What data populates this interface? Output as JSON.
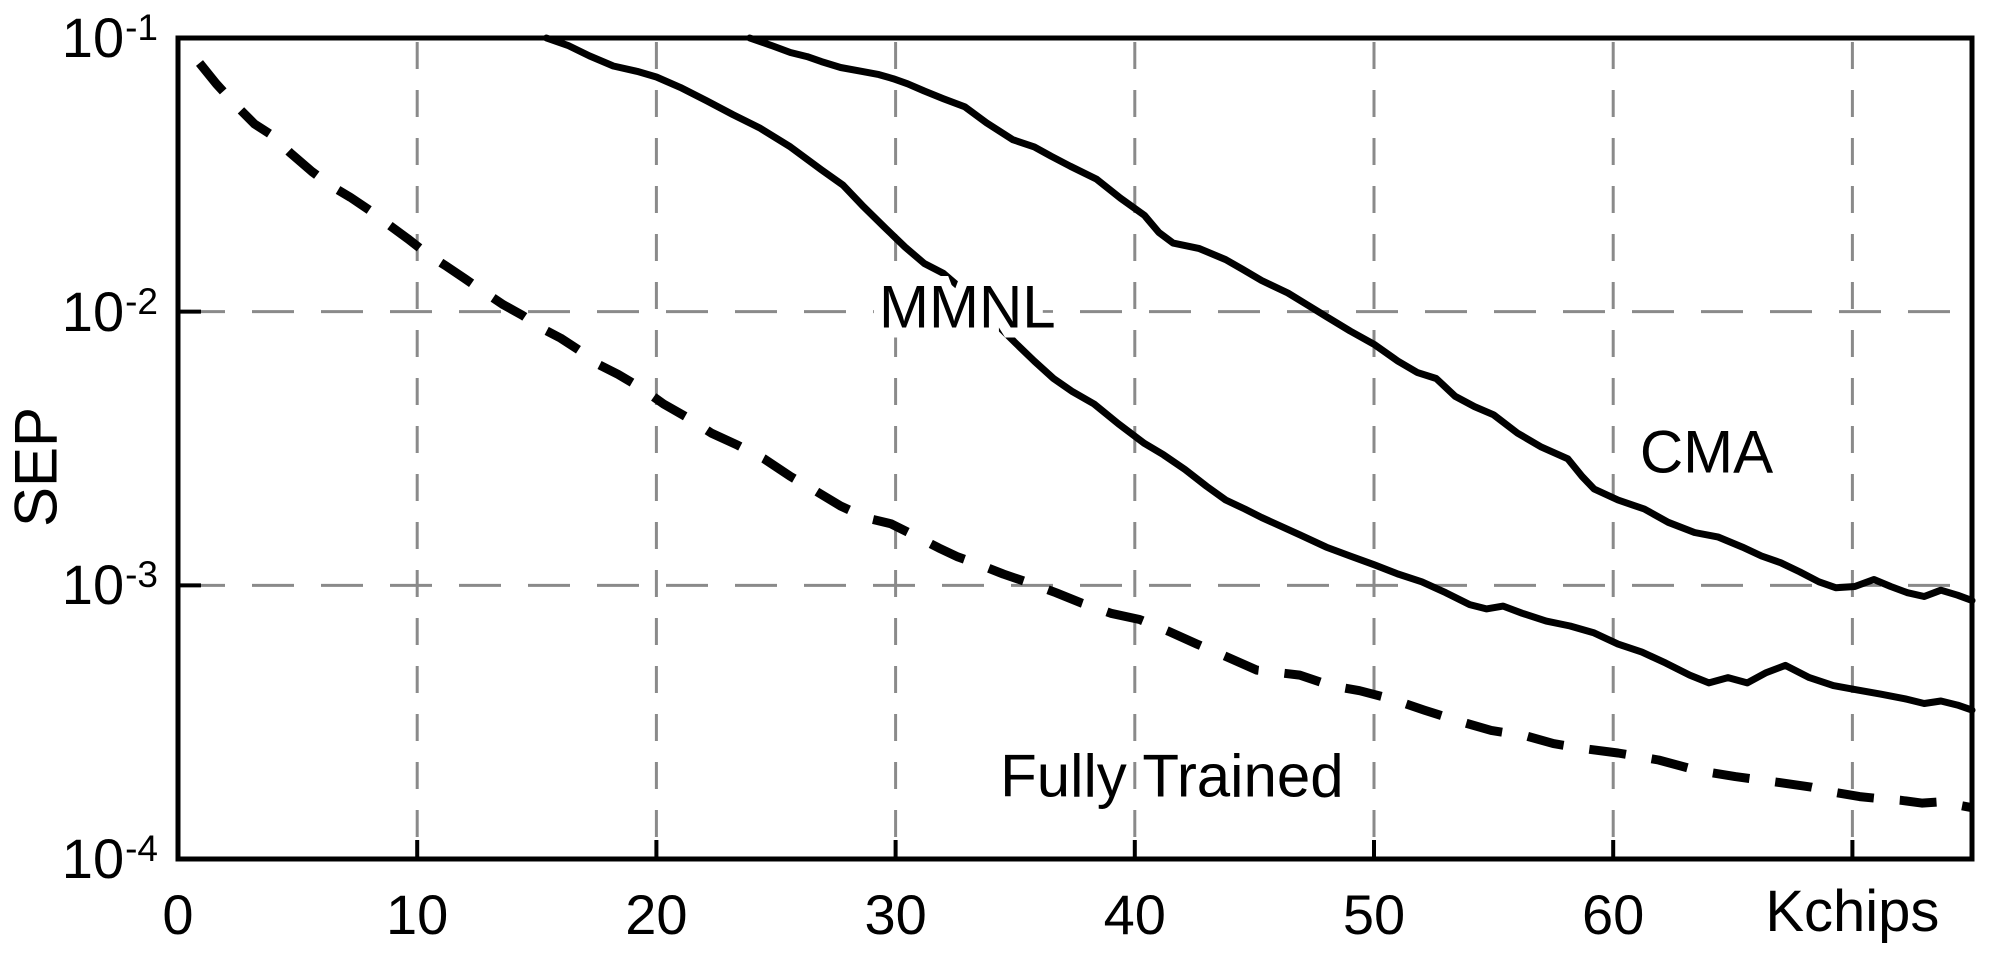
{
  "figure": {
    "background": "#ffffff",
    "axis_color": "#000000",
    "grid_color": "#8a8a8a",
    "curve_color": "#000000"
  },
  "chart_data": {
    "type": "line",
    "title": "",
    "xlabel": "Kchips",
    "ylabel": "SEP",
    "x_axis": {
      "min": 0,
      "max": 75,
      "grid_values": [
        10,
        20,
        30,
        40,
        50,
        60,
        70
      ],
      "tick_labels": [
        {
          "value": 0,
          "text": "0"
        },
        {
          "value": 10,
          "text": "10"
        },
        {
          "value": 20,
          "text": "20"
        },
        {
          "value": 30,
          "text": "30"
        },
        {
          "value": 40,
          "text": "40"
        },
        {
          "value": 50,
          "text": "50"
        },
        {
          "value": 60,
          "text": "60"
        }
      ],
      "unit_label": "Kchips",
      "unit_label_at": 70
    },
    "y_axis": {
      "scale": "log",
      "min": 0.0001,
      "max": 0.1,
      "grid_values": [
        0.01,
        0.001
      ],
      "axis_label": "SEP",
      "tick_labels": [
        {
          "base": "10",
          "exp": "-1",
          "value": 0.1
        },
        {
          "base": "10",
          "exp": "-2",
          "value": 0.01
        },
        {
          "base": "10",
          "exp": "-3",
          "value": 0.001
        },
        {
          "base": "10",
          "exp": "-4",
          "value": 0.0001
        }
      ]
    },
    "legend": "inline-annotations",
    "grid": true,
    "series": [
      {
        "name": "MMNL",
        "line_style": "solid",
        "annotation": {
          "text": "MMNL",
          "k": 33.0,
          "v": 0.0104,
          "halo": true
        },
        "points": [
          [
            15.4,
            0.1
          ],
          [
            16.3,
            0.094
          ],
          [
            17.2,
            0.086
          ],
          [
            18.2,
            0.079
          ],
          [
            19.2,
            0.0755
          ],
          [
            20,
            0.072
          ],
          [
            21,
            0.066
          ],
          [
            22.1,
            0.059
          ],
          [
            23.2,
            0.0525
          ],
          [
            24.3,
            0.047
          ],
          [
            25.6,
            0.04
          ],
          [
            26.9,
            0.033
          ],
          [
            27.8,
            0.029
          ],
          [
            28.6,
            0.0245
          ],
          [
            29.5,
            0.0205
          ],
          [
            30.4,
            0.0172
          ],
          [
            31.2,
            0.015
          ],
          [
            32,
            0.0138
          ],
          [
            33,
            0.0116
          ],
          [
            34,
            0.0094
          ],
          [
            35,
            0.0077
          ],
          [
            35.8,
            0.0066
          ],
          [
            36.6,
            0.0057
          ],
          [
            37.4,
            0.0051
          ],
          [
            38.3,
            0.0046
          ],
          [
            39.3,
            0.0039
          ],
          [
            40.4,
            0.0033
          ],
          [
            41.2,
            0.003
          ],
          [
            42.1,
            0.00265
          ],
          [
            43,
            0.0023
          ],
          [
            43.8,
            0.00205
          ],
          [
            44.6,
            0.0019
          ],
          [
            45.3,
            0.00177
          ],
          [
            46.9,
            0.00153
          ],
          [
            48,
            0.00138
          ],
          [
            49,
            0.00128
          ],
          [
            50,
            0.00119
          ],
          [
            51,
            0.0011
          ],
          [
            52,
            0.00103
          ],
          [
            53,
            0.00094
          ],
          [
            54,
            0.00085
          ],
          [
            54.7,
            0.00082
          ],
          [
            55.4,
            0.00084
          ],
          [
            56.2,
            0.00079
          ],
          [
            57.2,
            0.00074
          ],
          [
            58.2,
            0.00071
          ],
          [
            59.2,
            0.00067
          ],
          [
            60.2,
            0.00061
          ],
          [
            61.2,
            0.00057
          ],
          [
            62.2,
            0.00052
          ],
          [
            63.2,
            0.00047
          ],
          [
            64,
            0.00044
          ],
          [
            64.8,
            0.00046
          ],
          [
            65.6,
            0.00044
          ],
          [
            66.4,
            0.00048
          ],
          [
            67.2,
            0.00051
          ],
          [
            68.2,
            0.00046
          ],
          [
            69.2,
            0.00043
          ],
          [
            70.2,
            0.000415
          ],
          [
            71.2,
            0.0004
          ],
          [
            72.2,
            0.000385
          ],
          [
            73,
            0.00037
          ],
          [
            73.7,
            0.000378
          ],
          [
            74.4,
            0.000365
          ],
          [
            75,
            0.00035
          ]
        ]
      },
      {
        "name": "CMA",
        "line_style": "solid",
        "annotation": {
          "text": "CMA",
          "k": 63.9,
          "v": 0.00307,
          "halo": true
        },
        "points": [
          [
            23.9,
            0.1
          ],
          [
            24.8,
            0.094
          ],
          [
            25.6,
            0.0885
          ],
          [
            26.3,
            0.0855
          ],
          [
            26.9,
            0.082
          ],
          [
            27.7,
            0.078
          ],
          [
            28.6,
            0.0755
          ],
          [
            29.3,
            0.0735
          ],
          [
            29.9,
            0.071
          ],
          [
            30.5,
            0.068
          ],
          [
            31.2,
            0.064
          ],
          [
            32,
            0.06
          ],
          [
            32.9,
            0.056
          ],
          [
            33.8,
            0.049
          ],
          [
            34.9,
            0.0425
          ],
          [
            35.8,
            0.04
          ],
          [
            36.5,
            0.037
          ],
          [
            37.3,
            0.034
          ],
          [
            38.4,
            0.0305
          ],
          [
            39.4,
            0.026
          ],
          [
            40.4,
            0.0225
          ],
          [
            41,
            0.0195
          ],
          [
            41.6,
            0.0178
          ],
          [
            42.7,
            0.017
          ],
          [
            43.8,
            0.0155
          ],
          [
            44.5,
            0.0143
          ],
          [
            45.3,
            0.013
          ],
          [
            46.4,
            0.0117
          ],
          [
            47.2,
            0.0106
          ],
          [
            48,
            0.0096
          ],
          [
            49,
            0.0085
          ],
          [
            50,
            0.0076
          ],
          [
            51,
            0.0066
          ],
          [
            51.8,
            0.006
          ],
          [
            52.6,
            0.0057
          ],
          [
            53.4,
            0.0049
          ],
          [
            54.2,
            0.0045
          ],
          [
            55,
            0.0042
          ],
          [
            56,
            0.0036
          ],
          [
            57,
            0.0032
          ],
          [
            58.1,
            0.0029
          ],
          [
            58.7,
            0.0025
          ],
          [
            59.2,
            0.00225
          ],
          [
            60.2,
            0.00205
          ],
          [
            61.3,
            0.0019
          ],
          [
            62.3,
            0.0017
          ],
          [
            63.4,
            0.00156
          ],
          [
            64.4,
            0.0015
          ],
          [
            65.4,
            0.00138
          ],
          [
            66.2,
            0.00128
          ],
          [
            67,
            0.00121
          ],
          [
            67.8,
            0.00112
          ],
          [
            68.6,
            0.00103
          ],
          [
            69.3,
            0.00098
          ],
          [
            70.1,
            0.00099
          ],
          [
            70.9,
            0.00105
          ],
          [
            71.6,
            0.00099
          ],
          [
            72.3,
            0.00094
          ],
          [
            73,
            0.00091
          ],
          [
            73.7,
            0.00096
          ],
          [
            74.4,
            0.00092
          ],
          [
            75,
            0.00088
          ]
        ]
      },
      {
        "name": "Fully Trained",
        "line_style": "dashed",
        "annotation": {
          "text": "Fully Trained",
          "k": 41.55,
          "v": 0.000201,
          "halo": false
        },
        "points": [
          [
            0.9,
            0.081
          ],
          [
            1.6,
            0.068
          ],
          [
            2.4,
            0.057
          ],
          [
            3.2,
            0.0485
          ],
          [
            3.9,
            0.0443
          ],
          [
            4.7,
            0.038
          ],
          [
            5.6,
            0.0325
          ],
          [
            6.4,
            0.0288
          ],
          [
            7.2,
            0.0262
          ],
          [
            8,
            0.0235
          ],
          [
            8.8,
            0.0208
          ],
          [
            9.6,
            0.0185
          ],
          [
            10.4,
            0.0163
          ],
          [
            11.2,
            0.0147
          ],
          [
            12,
            0.0132
          ],
          [
            12.8,
            0.0118
          ],
          [
            13.6,
            0.0106
          ],
          [
            14.4,
            0.0097
          ],
          [
            15.2,
            0.0087
          ],
          [
            16,
            0.008
          ],
          [
            16.8,
            0.0072
          ],
          [
            17.6,
            0.0064
          ],
          [
            18.4,
            0.0059
          ],
          [
            19.3,
            0.0053
          ],
          [
            20.3,
            0.0046
          ],
          [
            21.3,
            0.0041
          ],
          [
            22.3,
            0.0036
          ],
          [
            23.4,
            0.00325
          ],
          [
            24.5,
            0.0029
          ],
          [
            25.6,
            0.0025
          ],
          [
            26.7,
            0.0022
          ],
          [
            27.7,
            0.00195
          ],
          [
            28.8,
            0.00176
          ],
          [
            29.8,
            0.00168
          ],
          [
            30.8,
            0.00152
          ],
          [
            31.8,
            0.00137
          ],
          [
            32.6,
            0.00127
          ],
          [
            33.4,
            0.0012
          ],
          [
            34.5,
            0.0011
          ],
          [
            35.6,
            0.00102
          ],
          [
            36.7,
            0.00094
          ],
          [
            37.8,
            0.00086
          ],
          [
            39,
            0.00079
          ],
          [
            40.2,
            0.00075
          ],
          [
            41.4,
            0.00068
          ],
          [
            42.6,
            0.00061
          ],
          [
            43.8,
            0.00055
          ],
          [
            45.1,
            0.00049
          ],
          [
            46.9,
            0.00047
          ],
          [
            48.2,
            0.00043
          ],
          [
            49.4,
            0.000412
          ],
          [
            50.7,
            0.000385
          ],
          [
            52.1,
            0.00035
          ],
          [
            53.5,
            0.00032
          ],
          [
            54.9,
            0.000295
          ],
          [
            56.4,
            0.000281
          ],
          [
            57.5,
            0.000264
          ],
          [
            58.8,
            0.000253
          ],
          [
            60.2,
            0.000244
          ],
          [
            61.9,
            0.00023
          ],
          [
            63.5,
            0.000211
          ],
          [
            65.1,
            0.0002
          ],
          [
            67,
            0.00019
          ],
          [
            68.3,
            0.000183
          ],
          [
            69.3,
            0.000175
          ],
          [
            70.3,
            0.000169
          ],
          [
            71.2,
            0.000166
          ],
          [
            72,
            0.000164
          ],
          [
            72.9,
            0.00016
          ],
          [
            73.8,
            0.000162
          ],
          [
            74.5,
            0.000157
          ],
          [
            75,
            0.000154
          ]
        ]
      }
    ]
  }
}
